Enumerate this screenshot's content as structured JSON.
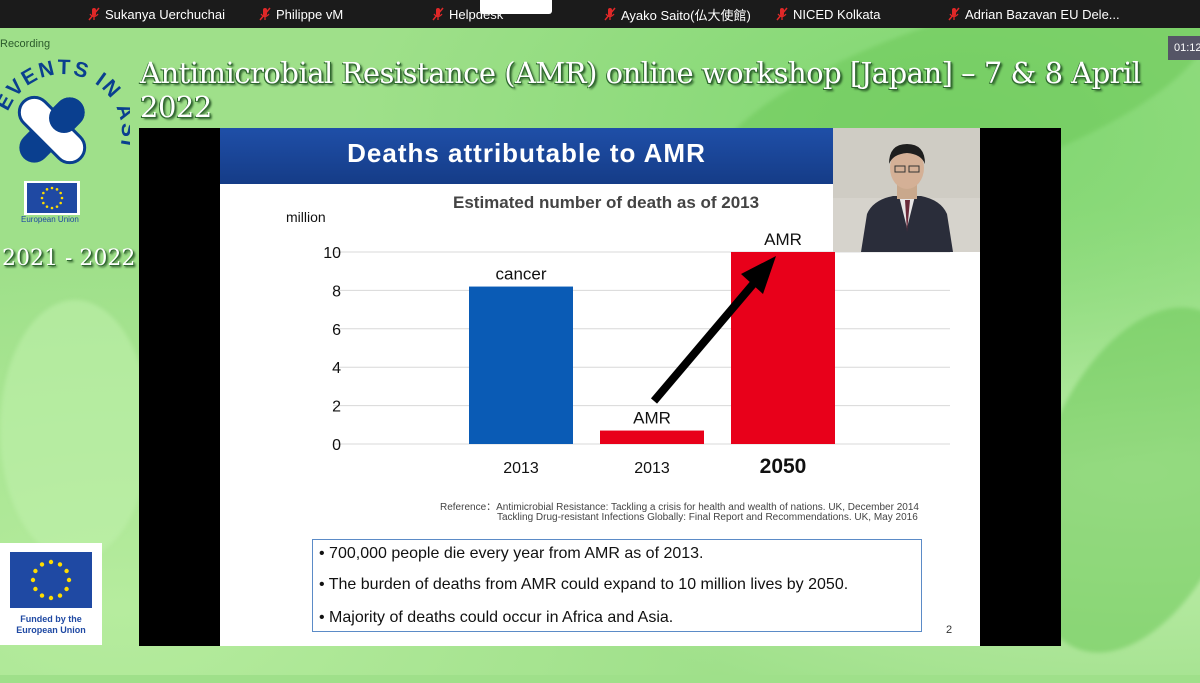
{
  "participants": [
    {
      "name": "Sukanya Uerchuchai",
      "muted": true
    },
    {
      "name": "Philippe vM",
      "muted": true
    },
    {
      "name": "Helpdesk",
      "muted": true
    },
    {
      "name": "Ayako Saito(仏大使館)",
      "muted": true
    },
    {
      "name": "NICED Kolkata",
      "muted": true
    },
    {
      "name": "Adrian Bazavan EU Dele...",
      "muted": true
    }
  ],
  "recording_label": "Recording",
  "timer": "01:12",
  "workshop_title": "Antimicrobial Resistance (AMR) online workshop [Japan] – 7 & 8 April 2022",
  "logo": {
    "text": "EVENTS IN ASIA",
    "eu_caption": "European Union"
  },
  "years": "2021 - 2022",
  "slide": {
    "header": "Deaths attributable to AMR",
    "page_number": "2",
    "references": [
      "Reference：Antimicrobial Resistance: Tackling a crisis for health and wealth of nations. UK, December 2014",
      "Tackling Drug-resistant Infections Globally: Final Report and Recommendations. UK, May 2016"
    ],
    "bullets": [
      "• 700,000 people die every year from AMR as of 2013.",
      "• The burden of deaths from AMR could expand to 10 million lives by 2050.",
      "• Majority of deaths could occur in Africa and Asia."
    ]
  },
  "chart_data": {
    "type": "bar",
    "title": "Estimated number of death as of 2013",
    "ylabel": "million",
    "ylim": [
      0,
      10
    ],
    "yticks": [
      0,
      2,
      4,
      6,
      8,
      10
    ],
    "grid": true,
    "categories": [
      "2013",
      "2013",
      "2050"
    ],
    "values": [
      8.2,
      0.7,
      10
    ],
    "bar_labels": [
      "cancer",
      "AMR",
      "AMR"
    ],
    "colors": [
      "#0a5bb5",
      "#e8001a",
      "#e8001a"
    ],
    "annotation": "arrow from AMR 2013 up to AMR 2050"
  },
  "funded_by": "Funded by the European Union",
  "colors": {
    "background": "#9fe08a",
    "slide_header": "#1f4fa8",
    "cancer_bar": "#0a5bb5",
    "amr_bar": "#e8001a"
  }
}
